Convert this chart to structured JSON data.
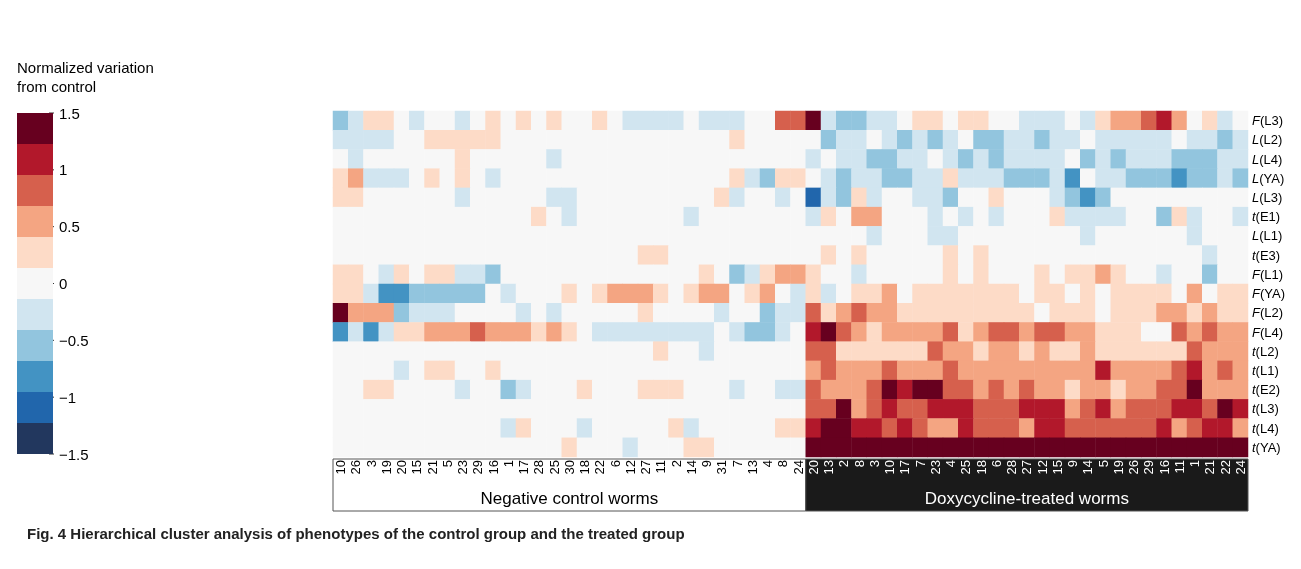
{
  "chart_data": {
    "type": "heatmap",
    "title": "Fig. 4 Hierarchical cluster analysis of phenotypes of the control group and the treated group",
    "clabel": "Normalized variation from control",
    "categories": [
      "10",
      "26",
      "3",
      "19",
      "20",
      "15",
      "21",
      "5",
      "23",
      "29",
      "16",
      "1",
      "17",
      "28",
      "25",
      "30",
      "18",
      "22",
      "6",
      "12",
      "27",
      "11",
      "2",
      "14",
      "9",
      "31",
      "7",
      "13",
      "4",
      "8",
      "24",
      "20",
      "13",
      "2",
      "8",
      "3",
      "10",
      "17",
      "7",
      "23",
      "4",
      "25",
      "18",
      "6",
      "28",
      "27",
      "12",
      "15",
      "9",
      "14",
      "5",
      "19",
      "26",
      "29",
      "16",
      "11",
      "1",
      "21",
      "22",
      "24"
    ],
    "y_categories": [
      "F(L3)",
      "L(L2)",
      "L(L4)",
      "L(YA)",
      "L(L3)",
      "t(E1)",
      "L(L1)",
      "t(E3)",
      "F(L1)",
      "F(YA)",
      "F(L2)",
      "F(L4)",
      "t(L2)",
      "t(L1)",
      "t(E2)",
      "t(L3)",
      "t(L4)",
      "t(YA)"
    ],
    "cells": [
      [
        -0.55,
        -0.27,
        0.27,
        0.27,
        0,
        -0.27,
        0,
        0,
        -0.27,
        0,
        0.27,
        0,
        0.27,
        0,
        0.27,
        0,
        0,
        0.27,
        0,
        -0.27,
        -0.27,
        -0.27,
        -0.27,
        0,
        -0.27,
        -0.27,
        -0.27,
        0,
        0,
        0.82,
        0.82,
        1.36,
        -0.27,
        -0.55,
        -0.55,
        -0.27,
        -0.27,
        0,
        0.27,
        0.27,
        0,
        0.27,
        0.27,
        0,
        0,
        -0.27,
        -0.27,
        -0.27,
        0,
        -0.27,
        0.27,
        0.55,
        0.55,
        0.82,
        1.09,
        0.55,
        0,
        0.27,
        -0.27,
        0
      ],
      [
        -0.27,
        -0.27,
        -0.27,
        -0.27,
        0,
        0,
        0.27,
        0.27,
        0.27,
        0.27,
        0.27,
        0,
        0,
        0,
        0,
        0,
        0,
        0,
        0,
        0,
        0,
        0,
        0,
        0,
        0,
        0,
        0.27,
        0,
        0,
        0,
        0,
        0,
        -0.55,
        -0.27,
        -0.27,
        0,
        -0.27,
        -0.55,
        -0.27,
        -0.55,
        -0.27,
        0,
        -0.55,
        -0.55,
        -0.27,
        -0.27,
        -0.55,
        -0.27,
        -0.27,
        0,
        -0.27,
        -0.27,
        -0.27,
        -0.27,
        -0.27,
        0,
        -0.27,
        -0.27,
        -0.55,
        -0.27
      ],
      [
        0,
        -0.27,
        0,
        0,
        0,
        0,
        0,
        0,
        0.27,
        0,
        0,
        0,
        0,
        0,
        -0.27,
        0,
        0,
        0,
        0,
        0,
        0,
        0,
        0,
        0,
        0,
        0,
        0,
        0,
        0,
        0,
        0,
        -0.27,
        0,
        -0.27,
        -0.27,
        -0.55,
        -0.55,
        -0.27,
        -0.27,
        0,
        -0.27,
        -0.55,
        -0.27,
        -0.55,
        -0.27,
        -0.27,
        -0.27,
        -0.27,
        0,
        -0.55,
        -0.27,
        -0.55,
        -0.27,
        -0.27,
        -0.27,
        -0.55,
        -0.55,
        -0.55,
        -0.27,
        -0.27
      ],
      [
        0.27,
        0.55,
        -0.27,
        -0.27,
        -0.27,
        0,
        0.27,
        0,
        0.27,
        0,
        -0.27,
        0,
        0,
        0,
        0,
        0,
        0,
        0,
        0,
        0,
        0,
        0,
        0,
        0,
        0,
        0,
        0.27,
        -0.27,
        -0.55,
        0.27,
        0.27,
        0,
        -0.27,
        -0.55,
        -0.27,
        -0.27,
        -0.55,
        -0.55,
        -0.27,
        -0.27,
        0.27,
        -0.27,
        -0.27,
        -0.27,
        -0.55,
        -0.55,
        -0.55,
        -0.27,
        -0.82,
        0,
        -0.27,
        -0.27,
        -0.55,
        -0.55,
        -0.55,
        -0.82,
        -0.55,
        -0.55,
        -0.27,
        -0.55
      ],
      [
        0.27,
        0.27,
        0,
        0,
        0,
        0,
        0,
        0,
        -0.27,
        0,
        0,
        0,
        0,
        0,
        -0.27,
        -0.27,
        0,
        0,
        0,
        0,
        0,
        0,
        0,
        0,
        0,
        0.27,
        -0.27,
        0,
        0,
        -0.27,
        0,
        -1.09,
        -0.27,
        -0.55,
        0.27,
        -0.27,
        0,
        0,
        -0.27,
        -0.27,
        -0.55,
        0,
        0,
        0.27,
        0,
        0,
        0,
        -0.27,
        -0.55,
        -0.82,
        -0.55,
        0,
        0,
        0,
        0,
        0,
        0,
        0,
        0,
        0
      ],
      [
        0,
        0,
        0,
        0,
        0,
        0,
        0,
        0,
        0,
        0,
        0,
        0,
        0,
        0.27,
        0,
        -0.27,
        0,
        0,
        0,
        0,
        0,
        0,
        0,
        -0.27,
        0,
        0,
        0,
        0,
        0,
        0,
        0,
        -0.27,
        0.27,
        0,
        0.55,
        0.55,
        0,
        0,
        0,
        -0.27,
        0,
        -0.27,
        0,
        -0.27,
        0,
        0,
        0,
        0.27,
        -0.27,
        -0.27,
        -0.27,
        -0.27,
        0,
        0,
        -0.55,
        0.27,
        -0.27,
        0,
        0,
        -0.27
      ],
      [
        0,
        0,
        0,
        0,
        0,
        0,
        0,
        0,
        0,
        0,
        0,
        0,
        0,
        0,
        0,
        0,
        0,
        0,
        0,
        0,
        0,
        0,
        0,
        0,
        0,
        0,
        0,
        0,
        0,
        0,
        0,
        0,
        0,
        0,
        0,
        -0.27,
        0,
        0,
        0,
        -0.27,
        -0.27,
        0,
        0,
        0,
        0,
        0,
        0,
        0,
        0,
        -0.27,
        0,
        0,
        0,
        0,
        0,
        0,
        -0.27,
        0,
        0,
        0
      ],
      [
        0,
        0,
        0,
        0,
        0,
        0,
        0,
        0,
        0,
        0,
        0,
        0,
        0,
        0,
        0,
        0,
        0,
        0,
        0,
        0,
        0.27,
        0.27,
        0,
        0,
        0,
        0,
        0,
        0,
        0,
        0,
        0,
        0,
        0.27,
        0,
        0.27,
        0,
        0,
        0,
        0,
        0,
        0.27,
        0,
        0.27,
        0,
        0,
        0,
        0,
        0,
        0,
        0,
        0,
        0,
        0,
        0,
        0,
        0,
        0,
        -0.27,
        0,
        0
      ],
      [
        0.27,
        0.27,
        0,
        -0.27,
        0.27,
        0,
        0.27,
        0.27,
        -0.27,
        -0.27,
        -0.55,
        0,
        0,
        0,
        0,
        0,
        0,
        0,
        0,
        0,
        0,
        0,
        0,
        0,
        0.27,
        0,
        -0.55,
        -0.27,
        0.27,
        0.55,
        0.55,
        0.27,
        0,
        0,
        -0.27,
        0,
        0,
        0,
        0,
        0,
        0.27,
        0,
        0.27,
        0,
        0,
        0,
        0.27,
        0,
        0.27,
        0.27,
        0.55,
        0.27,
        0,
        0,
        -0.27,
        0,
        0,
        -0.55,
        0,
        0
      ],
      [
        0.27,
        0.27,
        -0.27,
        -0.82,
        -0.82,
        -0.55,
        -0.55,
        -0.55,
        -0.55,
        -0.55,
        0,
        -0.27,
        0,
        0,
        0,
        0.27,
        0,
        0.27,
        0.55,
        0.55,
        0.55,
        0.27,
        0,
        0.27,
        0.55,
        0.55,
        0,
        0.27,
        0.55,
        0,
        -0.27,
        0.27,
        -0.27,
        0,
        0.27,
        0.27,
        0.55,
        0,
        0.27,
        0.27,
        0.27,
        0.27,
        0.27,
        0.27,
        0.27,
        0,
        0.27,
        0.27,
        0,
        0.27,
        0,
        0.27,
        0.27,
        0.27,
        0.27,
        0,
        0.55,
        0,
        0.27,
        0.27
      ],
      [
        1.36,
        0.55,
        0.55,
        0.55,
        -0.55,
        -0.27,
        -0.27,
        -0.27,
        0,
        0,
        0,
        0,
        -0.27,
        0,
        -0.27,
        0,
        0,
        0,
        0,
        0,
        0.27,
        0,
        0,
        0,
        0,
        -0.27,
        0,
        0,
        -0.55,
        -0.27,
        -0.27,
        0.82,
        0.27,
        0.55,
        0.82,
        0.55,
        0.55,
        0.27,
        0.27,
        0.27,
        0.27,
        0.27,
        0.27,
        0.27,
        0.27,
        0.27,
        0,
        0.27,
        0.27,
        0.27,
        0,
        0.27,
        0.27,
        0.27,
        0.55,
        0.55,
        0.27,
        0.55,
        0.27,
        0.27
      ],
      [
        -0.82,
        -0.27,
        -0.82,
        -0.27,
        0.27,
        0.27,
        0.55,
        0.55,
        0.55,
        0.82,
        0.55,
        0.55,
        0.55,
        0.27,
        0.55,
        0.27,
        0,
        -0.27,
        -0.27,
        -0.27,
        -0.27,
        -0.27,
        -0.27,
        -0.27,
        -0.27,
        0,
        -0.27,
        -0.55,
        -0.55,
        -0.27,
        0,
        1.09,
        1.36,
        0.82,
        0.55,
        0.27,
        0.55,
        0.55,
        0.55,
        0.55,
        0.82,
        0.27,
        0.55,
        0.82,
        0.82,
        0.55,
        0.82,
        0.82,
        0.55,
        0.55,
        0.27,
        0.27,
        0.27,
        0,
        0,
        0.82,
        0.55,
        0.82,
        0.55,
        0.55
      ],
      [
        0,
        0,
        0,
        0,
        0,
        0,
        0,
        0,
        0,
        0,
        0,
        0,
        0,
        0,
        0,
        0,
        0,
        0,
        0,
        0,
        0,
        0.27,
        0,
        0,
        -0.27,
        0,
        0,
        0,
        0,
        0,
        0,
        0.82,
        0.82,
        0.27,
        0.27,
        0.27,
        0.27,
        0.27,
        0.27,
        0.82,
        0.55,
        0.55,
        0.27,
        0.55,
        0.55,
        0.27,
        0.55,
        0.27,
        0.27,
        0.55,
        0.27,
        0.27,
        0.27,
        0.27,
        0.27,
        0.27,
        0.82,
        0.55,
        0.55,
        0.55
      ],
      [
        0,
        0,
        0,
        0,
        -0.27,
        0,
        0.27,
        0.27,
        0,
        0,
        0.27,
        0,
        0,
        0,
        0,
        0,
        0,
        0,
        0,
        0,
        0,
        0,
        0,
        0,
        0,
        0,
        0,
        0,
        0,
        0,
        0,
        0.55,
        0.82,
        0.55,
        0.55,
        0.55,
        0.82,
        0.55,
        0.55,
        0.55,
        0.82,
        0.55,
        0.55,
        0.55,
        0.55,
        0.55,
        0.55,
        0.55,
        0.55,
        0.55,
        1.09,
        0.55,
        0.55,
        0.55,
        0.55,
        0.82,
        1.09,
        0.55,
        0.82,
        0.55
      ],
      [
        0,
        0,
        0.27,
        0.27,
        0,
        0,
        0,
        0,
        -0.27,
        0,
        0,
        -0.55,
        -0.27,
        0,
        0,
        0,
        0.27,
        0,
        0,
        0,
        0.27,
        0.27,
        0.27,
        0,
        0,
        0,
        -0.27,
        0,
        0,
        -0.27,
        -0.27,
        0.82,
        0.55,
        0.55,
        0.55,
        0.82,
        1.36,
        1.09,
        1.36,
        1.36,
        0.82,
        0.82,
        0.55,
        0.82,
        0.55,
        0.82,
        0.55,
        0.55,
        0.27,
        0.55,
        0.55,
        0.27,
        0.55,
        0.55,
        0.82,
        0.82,
        1.36,
        0.55,
        0.55,
        0.55
      ],
      [
        0,
        0,
        0,
        0,
        0,
        0,
        0,
        0,
        0,
        0,
        0,
        0,
        0,
        0,
        0,
        0,
        0,
        0,
        0,
        0,
        0,
        0,
        0,
        0,
        0,
        0,
        0,
        0,
        0,
        0,
        0,
        0.82,
        0.82,
        1.36,
        0.55,
        0.82,
        1.09,
        0.82,
        0.82,
        1.09,
        1.09,
        1.09,
        0.82,
        0.82,
        0.82,
        1.09,
        1.09,
        1.09,
        0.55,
        0.82,
        1.09,
        0.55,
        0.82,
        0.82,
        0.82,
        1.09,
        1.09,
        0.82,
        1.36,
        1.09
      ],
      [
        0,
        0,
        0,
        0,
        0,
        0,
        0,
        0,
        0,
        0,
        0,
        -0.27,
        0.27,
        0,
        0,
        0,
        -0.27,
        0,
        0,
        0,
        0,
        0,
        0.27,
        -0.27,
        0,
        0,
        0,
        0,
        0,
        0.27,
        0.27,
        1.09,
        1.36,
        1.36,
        1.09,
        1.09,
        0.82,
        1.09,
        0.82,
        0.55,
        0.55,
        1.09,
        0.82,
        0.82,
        0.82,
        0.55,
        1.09,
        1.09,
        0.82,
        0.82,
        0.82,
        0.82,
        0.82,
        0.82,
        1.09,
        0.55,
        0.82,
        1.09,
        1.09,
        0.55
      ],
      [
        0,
        0,
        0,
        0,
        0,
        0,
        0,
        0,
        0,
        0,
        0,
        0,
        0,
        0,
        0,
        0.27,
        0,
        0,
        0,
        -0.27,
        0,
        0,
        0,
        0.27,
        0.27,
        0,
        0,
        0,
        0,
        0,
        0,
        1.36,
        1.36,
        1.36,
        1.36,
        1.36,
        1.36,
        1.36,
        1.36,
        1.36,
        1.36,
        1.36,
        1.36,
        1.36,
        1.36,
        1.36,
        1.36,
        1.36,
        1.36,
        1.36,
        1.36,
        1.36,
        1.36,
        1.36,
        1.36,
        1.36,
        1.36,
        1.36,
        1.36,
        1.36
      ]
    ],
    "clim": [
      -1.5,
      1.5
    ],
    "cticks": [
      1.5,
      1,
      0.5,
      0,
      {
        "value": -0.5,
        "label": "−0.5"
      },
      {
        "value": -1,
        "label": "−1"
      },
      {
        "value": -1.5,
        "label": "−1.5"
      }
    ],
    "annotations": [
      "Negative control worms",
      "Doxycycline-treated worms"
    ]
  }
}
